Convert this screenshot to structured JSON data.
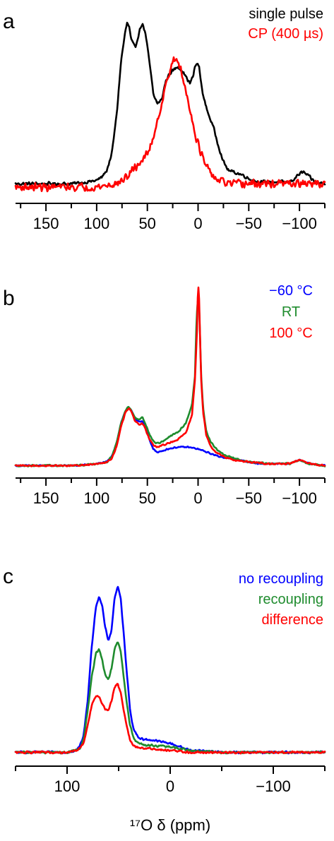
{
  "chart_data": [
    {
      "type": "line",
      "panel": "a",
      "xlim": [
        180,
        -125
      ],
      "xticks": [
        150,
        100,
        50,
        0,
        -50,
        -100
      ],
      "xtick_labels": [
        "150",
        "100",
        "50",
        "0",
        "−50",
        "−100"
      ],
      "legend_placement": "top-right",
      "grid": false,
      "series": [
        {
          "name": "single pulse",
          "color": "#000000",
          "noise": 0.012,
          "x": [
            180,
            150,
            125,
            110,
            100,
            95,
            90,
            85,
            80,
            76,
            72,
            70,
            68,
            66,
            62,
            58,
            55,
            52,
            48,
            44,
            40,
            36,
            32,
            28,
            24,
            20,
            16,
            12,
            8,
            5,
            3,
            1,
            -1,
            -3,
            -6,
            -10,
            -15,
            -20,
            -25,
            -30,
            -35,
            -40,
            -45,
            -50,
            -60,
            -70,
            -80,
            -90,
            -95,
            -100,
            -104,
            -110,
            -115,
            -125
          ],
          "y": [
            0.02,
            0.02,
            0.02,
            0.03,
            0.04,
            0.06,
            0.1,
            0.2,
            0.45,
            0.75,
            0.92,
            0.98,
            0.96,
            0.88,
            0.83,
            0.93,
            0.98,
            0.92,
            0.75,
            0.55,
            0.5,
            0.52,
            0.63,
            0.68,
            0.7,
            0.72,
            0.7,
            0.66,
            0.62,
            0.66,
            0.72,
            0.74,
            0.72,
            0.62,
            0.52,
            0.44,
            0.36,
            0.25,
            0.15,
            0.1,
            0.09,
            0.08,
            0.07,
            0.05,
            0.03,
            0.03,
            0.03,
            0.03,
            0.05,
            0.08,
            0.09,
            0.06,
            0.03,
            0.02
          ]
        },
        {
          "name": "CP (400 µs)",
          "color": "#ff0000",
          "noise": 0.028,
          "x": [
            180,
            150,
            120,
            100,
            90,
            80,
            75,
            70,
            65,
            60,
            55,
            50,
            45,
            40,
            35,
            32,
            29,
            26,
            23,
            20,
            17,
            14,
            11,
            8,
            5,
            2,
            -2,
            -6,
            -12,
            -20,
            -30,
            -40,
            -60,
            -80,
            -100,
            -125
          ],
          "y": [
            0.0,
            0.0,
            0.0,
            0.0,
            0.01,
            0.02,
            0.04,
            0.06,
            0.1,
            0.13,
            0.16,
            0.2,
            0.28,
            0.4,
            0.52,
            0.6,
            0.68,
            0.73,
            0.76,
            0.75,
            0.7,
            0.62,
            0.55,
            0.47,
            0.38,
            0.3,
            0.22,
            0.15,
            0.08,
            0.04,
            0.02,
            0.02,
            0.02,
            0.02,
            0.02,
            0.02
          ]
        }
      ]
    },
    {
      "type": "line",
      "panel": "b",
      "xlim": [
        180,
        -125
      ],
      "xticks": [
        150,
        100,
        50,
        0,
        -50,
        -100
      ],
      "xtick_labels": [
        "150",
        "100",
        "50",
        "0",
        "−50",
        "−100"
      ],
      "legend_placement": "top-right",
      "grid": false,
      "series": [
        {
          "name": "−60 °C",
          "color": "#0000ff",
          "noise": 0.004,
          "x": [
            180,
            120,
            100,
            90,
            85,
            80,
            76,
            72,
            69,
            66,
            62,
            58,
            55,
            52,
            48,
            44,
            40,
            35,
            30,
            20,
            10,
            0,
            -10,
            -20,
            -30,
            -40,
            -50,
            -60,
            -80,
            -90,
            -95,
            -100,
            -105,
            -110,
            -125
          ],
          "y": [
            0.01,
            0.01,
            0.02,
            0.03,
            0.06,
            0.14,
            0.24,
            0.3,
            0.32,
            0.31,
            0.26,
            0.25,
            0.25,
            0.22,
            0.15,
            0.1,
            0.08,
            0.09,
            0.1,
            0.11,
            0.11,
            0.1,
            0.08,
            0.06,
            0.05,
            0.04,
            0.03,
            0.02,
            0.02,
            0.02,
            0.03,
            0.04,
            0.03,
            0.02,
            0.01
          ]
        },
        {
          "name": "RT",
          "color": "#1f8c2e",
          "noise": 0.005,
          "x": [
            180,
            120,
            100,
            90,
            85,
            80,
            76,
            72,
            69,
            66,
            62,
            58,
            55,
            52,
            48,
            44,
            40,
            35,
            30,
            20,
            12,
            6,
            3,
            2,
            1,
            0,
            -1,
            -2,
            -3,
            -5,
            -8,
            -12,
            -18,
            -25,
            -35,
            -50,
            -70,
            -90,
            -95,
            -100,
            -105,
            -110,
            -125
          ],
          "y": [
            0.01,
            0.01,
            0.02,
            0.03,
            0.06,
            0.14,
            0.24,
            0.3,
            0.33,
            0.31,
            0.27,
            0.26,
            0.27,
            0.24,
            0.18,
            0.14,
            0.13,
            0.14,
            0.16,
            0.19,
            0.24,
            0.34,
            0.5,
            0.72,
            0.85,
            0.92,
            0.88,
            0.7,
            0.5,
            0.32,
            0.2,
            0.14,
            0.1,
            0.07,
            0.05,
            0.03,
            0.02,
            0.02,
            0.03,
            0.04,
            0.03,
            0.02,
            0.01
          ]
        },
        {
          "name": "100 °C",
          "color": "#ff0000",
          "noise": 0.005,
          "x": [
            180,
            120,
            100,
            90,
            85,
            80,
            76,
            72,
            69,
            66,
            62,
            58,
            55,
            52,
            48,
            44,
            40,
            35,
            30,
            20,
            12,
            6,
            3,
            1,
            0,
            -1,
            -2,
            -3,
            -5,
            -8,
            -12,
            -18,
            -25,
            -35,
            -50,
            -70,
            -90,
            -95,
            -100,
            -105,
            -110,
            -125
          ],
          "y": [
            0.01,
            0.01,
            0.02,
            0.03,
            0.05,
            0.12,
            0.22,
            0.29,
            0.32,
            0.31,
            0.25,
            0.23,
            0.24,
            0.21,
            0.15,
            0.12,
            0.11,
            0.12,
            0.13,
            0.15,
            0.19,
            0.28,
            0.48,
            0.75,
            1.0,
            0.92,
            0.7,
            0.48,
            0.3,
            0.18,
            0.12,
            0.08,
            0.06,
            0.04,
            0.03,
            0.02,
            0.02,
            0.03,
            0.04,
            0.03,
            0.02,
            0.01
          ]
        }
      ]
    },
    {
      "type": "line",
      "panel": "c",
      "xlim": [
        150,
        -150
      ],
      "xticks": [
        100,
        0,
        -100
      ],
      "xtick_labels": [
        "100",
        "0",
        "−100"
      ],
      "xlabel": "¹⁷O δ (ppm)",
      "legend_placement": "top-right",
      "grid": false,
      "series": [
        {
          "name": "no recoupling",
          "color": "#0000ff",
          "noise": 0.007,
          "x": [
            150,
            110,
            100,
            92,
            88,
            84,
            80,
            76,
            72,
            69,
            66,
            63,
            60,
            57,
            54,
            51,
            48,
            45,
            42,
            39,
            36,
            33,
            30,
            25,
            20,
            10,
            0,
            -10,
            -20,
            -30,
            -50,
            -80,
            -110,
            -150
          ],
          "y": [
            0.01,
            0.01,
            0.01,
            0.02,
            0.04,
            0.1,
            0.3,
            0.6,
            0.82,
            0.87,
            0.82,
            0.7,
            0.63,
            0.68,
            0.86,
            0.93,
            0.86,
            0.66,
            0.45,
            0.25,
            0.15,
            0.11,
            0.09,
            0.08,
            0.08,
            0.07,
            0.06,
            0.04,
            0.02,
            0.02,
            0.01,
            0.01,
            0.01,
            0.01
          ]
        },
        {
          "name": "recoupling",
          "color": "#1f8c2e",
          "noise": 0.007,
          "x": [
            150,
            110,
            100,
            92,
            88,
            84,
            80,
            76,
            72,
            69,
            66,
            63,
            60,
            57,
            54,
            51,
            48,
            45,
            42,
            39,
            36,
            33,
            30,
            25,
            20,
            10,
            0,
            -10,
            -20,
            -30,
            -50,
            -80,
            -110,
            -150
          ],
          "y": [
            0.01,
            0.01,
            0.01,
            0.02,
            0.03,
            0.08,
            0.24,
            0.43,
            0.56,
            0.58,
            0.52,
            0.44,
            0.41,
            0.47,
            0.58,
            0.62,
            0.57,
            0.42,
            0.28,
            0.16,
            0.1,
            0.07,
            0.06,
            0.05,
            0.05,
            0.045,
            0.04,
            0.03,
            0.02,
            0.015,
            0.01,
            0.01,
            0.01,
            0.01
          ]
        },
        {
          "name": "difference",
          "color": "#ff0000",
          "noise": 0.007,
          "x": [
            150,
            110,
            100,
            92,
            88,
            84,
            80,
            76,
            72,
            69,
            66,
            63,
            60,
            57,
            54,
            51,
            48,
            45,
            42,
            39,
            36,
            33,
            30,
            25,
            20,
            10,
            0,
            -10,
            -20,
            -30,
            -50,
            -80,
            -110,
            -150
          ],
          "y": [
            0.01,
            0.01,
            0.01,
            0.02,
            0.03,
            0.06,
            0.16,
            0.27,
            0.32,
            0.32,
            0.28,
            0.25,
            0.24,
            0.29,
            0.37,
            0.39,
            0.34,
            0.24,
            0.15,
            0.08,
            0.05,
            0.04,
            0.035,
            0.03,
            0.03,
            0.025,
            0.02,
            0.015,
            0.01,
            0.01,
            0.01,
            0.01,
            0.01,
            0.01
          ]
        }
      ]
    }
  ]
}
